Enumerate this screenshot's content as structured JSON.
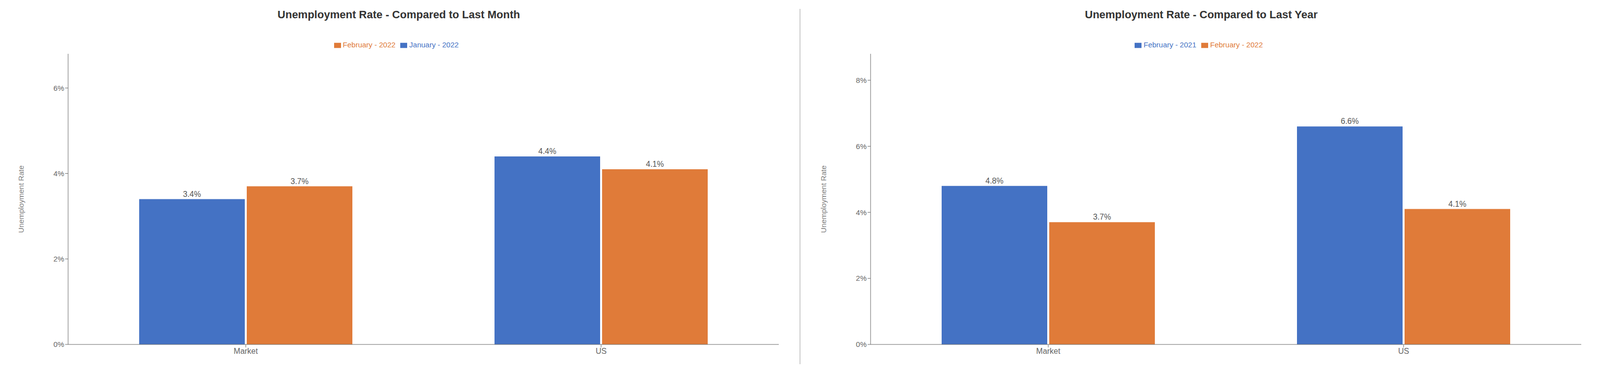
{
  "chart_data": [
    {
      "type": "bar",
      "title": "Unemployment Rate - Compared to Last Month",
      "categories": [
        "Market",
        "US"
      ],
      "series": [
        {
          "name": "January - 2022",
          "color": "#4472C4",
          "values": [
            3.4,
            4.4
          ],
          "value_labels": [
            "3.4%",
            "4.4%"
          ]
        },
        {
          "name": "February - 2022",
          "color": "#E07B39",
          "values": [
            3.7,
            4.1
          ],
          "value_labels": [
            "3.7%",
            "4.1%"
          ]
        }
      ],
      "ylabel": "Unemployment Rate",
      "ylim": [
        0,
        6.8
      ],
      "yticks": [
        {
          "value": 0,
          "label": "0%"
        },
        {
          "value": 2,
          "label": "2%"
        },
        {
          "value": 4,
          "label": "4%"
        },
        {
          "value": 6,
          "label": "6%"
        }
      ],
      "grid": false,
      "legend": "upper center",
      "data_labels": true
    },
    {
      "type": "bar",
      "title": "Unemployment Rate - Compared to Last Year",
      "categories": [
        "Market",
        "US"
      ],
      "series": [
        {
          "name": "February - 2021",
          "color": "#4472C4",
          "values": [
            4.8,
            6.6
          ],
          "value_labels": [
            "4.8%",
            "6.6%"
          ]
        },
        {
          "name": "February - 2022",
          "color": "#E07B39",
          "values": [
            3.7,
            4.1
          ],
          "value_labels": [
            "3.7%",
            "4.1%"
          ]
        }
      ],
      "ylabel": "Unemployment Rate",
      "ylim": [
        0,
        8.8
      ],
      "yticks": [
        {
          "value": 0,
          "label": "0%"
        },
        {
          "value": 2,
          "label": "2%"
        },
        {
          "value": 4,
          "label": "4%"
        },
        {
          "value": 6,
          "label": "6%"
        },
        {
          "value": 8,
          "label": "8%"
        }
      ],
      "grid": false,
      "legend": "upper center",
      "data_labels": true
    }
  ]
}
